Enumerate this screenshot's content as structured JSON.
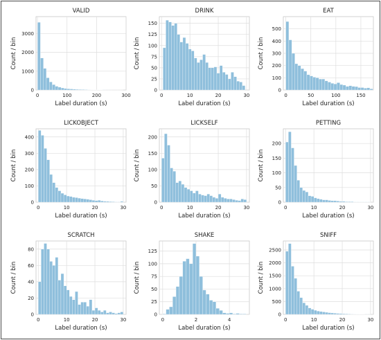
{
  "figure": {
    "border_color": "#4a4a4a",
    "bar_color": "#8fbfdc",
    "grid": true
  },
  "chart_data": [
    {
      "type": "bar",
      "title": "VALID",
      "xlabel": "Label duration (s)",
      "ylabel": "Count / bin",
      "xlim": [
        -5,
        300
      ],
      "ylim": [
        0,
        3900
      ],
      "xticks": [
        0,
        100,
        200,
        300
      ],
      "yticks": [
        0,
        1000,
        2000,
        3000
      ],
      "bin_start": 0,
      "bin_width": 10,
      "values": [
        3600,
        1700,
        1150,
        650,
        430,
        290,
        200,
        150,
        110,
        80,
        65,
        55,
        45,
        35,
        30,
        25,
        20,
        15,
        12,
        10,
        8,
        6,
        5,
        4,
        3,
        2,
        2,
        1,
        1
      ]
    },
    {
      "type": "bar",
      "title": "DRINK",
      "xlabel": "Label duration (s)",
      "ylabel": "Count / bin",
      "xlim": [
        -0.8,
        31
      ],
      "ylim": [
        0,
        165
      ],
      "xticks": [
        0,
        10,
        20,
        30
      ],
      "yticks": [
        0,
        25,
        50,
        75,
        100,
        125,
        150
      ],
      "bin_start": 0.5,
      "bin_width": 1,
      "values": [
        95,
        157,
        153,
        145,
        150,
        125,
        108,
        118,
        105,
        92,
        88,
        72,
        62,
        68,
        80,
        62,
        50,
        50,
        52,
        38,
        55,
        40,
        35,
        25,
        40,
        30,
        20,
        18,
        10
      ]
    },
    {
      "type": "bar",
      "title": "EAT",
      "xlabel": "Label duration (s)",
      "ylabel": "Count / bin",
      "xlim": [
        -5,
        175
      ],
      "ylim": [
        0,
        600
      ],
      "xticks": [
        0,
        50,
        100,
        150
      ],
      "yticks": [
        0,
        100,
        200,
        300,
        400,
        500
      ],
      "bin_start": 0,
      "bin_width": 6,
      "values": [
        560,
        410,
        300,
        215,
        200,
        175,
        155,
        125,
        115,
        105,
        100,
        90,
        90,
        75,
        65,
        55,
        50,
        60,
        45,
        40,
        30,
        35,
        30,
        28,
        20,
        20,
        15,
        18,
        10
      ]
    },
    {
      "type": "bar",
      "title": "LICKOBJECT",
      "xlabel": "Label duration (s)",
      "ylabel": "Count / bin",
      "xlim": [
        -0.8,
        31
      ],
      "ylim": [
        0,
        450
      ],
      "xticks": [
        0,
        10,
        20,
        30
      ],
      "yticks": [
        0,
        100,
        200,
        300,
        400
      ],
      "bin_start": 0,
      "bin_width": 1,
      "values": [
        440,
        410,
        330,
        260,
        170,
        120,
        90,
        70,
        55,
        45,
        38,
        35,
        30,
        28,
        25,
        22,
        20,
        18,
        15,
        12,
        10,
        12,
        8,
        6,
        5,
        4,
        3,
        2,
        2,
        5
      ]
    },
    {
      "type": "bar",
      "title": "LICKSELF",
      "xlabel": "Label duration (s)",
      "ylabel": "Count / bin",
      "xlim": [
        -0.8,
        31
      ],
      "ylim": [
        0,
        225
      ],
      "xticks": [
        0,
        10,
        20,
        30
      ],
      "yticks": [
        0,
        50,
        100,
        150,
        200
      ],
      "bin_start": 0,
      "bin_width": 1,
      "values": [
        135,
        210,
        175,
        105,
        95,
        60,
        65,
        55,
        45,
        40,
        35,
        28,
        35,
        25,
        22,
        20,
        25,
        20,
        15,
        12,
        25,
        15,
        12,
        10,
        10,
        8,
        6,
        5,
        10,
        8
      ]
    },
    {
      "type": "bar",
      "title": "PETTING",
      "xlabel": "Label duration (s)",
      "ylabel": "Count / bin",
      "xlim": [
        -0.8,
        31
      ],
      "ylim": [
        0,
        250
      ],
      "xticks": [
        0,
        10,
        20,
        30
      ],
      "yticks": [
        0,
        50,
        100,
        150,
        200
      ],
      "bin_start": 0,
      "bin_width": 1,
      "values": [
        205,
        240,
        185,
        125,
        75,
        50,
        40,
        35,
        22,
        20,
        15,
        12,
        10,
        8,
        8,
        6,
        5,
        5,
        4,
        3,
        3,
        2,
        2,
        2,
        1,
        1,
        1,
        1,
        1,
        1
      ]
    },
    {
      "type": "bar",
      "title": "SCRATCH",
      "xlabel": "Label duration (s)",
      "ylabel": "Count / bin",
      "xlim": [
        -0.8,
        31
      ],
      "ylim": [
        0,
        90
      ],
      "xticks": [
        0,
        10,
        20,
        30
      ],
      "yticks": [
        0,
        20,
        40,
        60,
        80
      ],
      "bin_start": 0,
      "bin_width": 1,
      "values": [
        40,
        80,
        87,
        80,
        65,
        60,
        70,
        42,
        50,
        35,
        30,
        22,
        18,
        28,
        12,
        15,
        15,
        10,
        18,
        5,
        8,
        5,
        3,
        5,
        2,
        3,
        2,
        1,
        2,
        3
      ]
    },
    {
      "type": "bar",
      "title": "SHAKE",
      "xlabel": "Label duration (s)",
      "ylabel": "Count / bin",
      "xlim": [
        -0.2,
        5.2
      ],
      "ylim": [
        0,
        145
      ],
      "xticks": [
        0,
        2,
        4
      ],
      "yticks": [
        0,
        25,
        50,
        75,
        100,
        125
      ],
      "bin_start": 0,
      "bin_width": 0.2,
      "values": [
        1,
        10,
        15,
        35,
        55,
        75,
        105,
        110,
        100,
        140,
        115,
        75,
        48,
        40,
        28,
        25,
        12,
        8,
        3,
        2,
        3,
        1,
        2,
        1,
        1
      ]
    },
    {
      "type": "bar",
      "title": "SNIFF",
      "xlabel": "Label duration (s)",
      "ylabel": "Count / bin",
      "xlim": [
        -0.8,
        31
      ],
      "ylim": [
        0,
        2850
      ],
      "xticks": [
        0,
        10,
        20,
        30
      ],
      "yticks": [
        0,
        500,
        1000,
        1500,
        2000,
        2500
      ],
      "bin_start": 0,
      "bin_width": 1,
      "values": [
        2450,
        2750,
        1870,
        1400,
        900,
        650,
        450,
        350,
        250,
        200,
        160,
        130,
        110,
        95,
        80,
        65,
        55,
        45,
        38,
        30,
        25,
        20,
        15,
        12,
        10,
        8,
        6,
        5,
        4,
        3
      ]
    }
  ]
}
